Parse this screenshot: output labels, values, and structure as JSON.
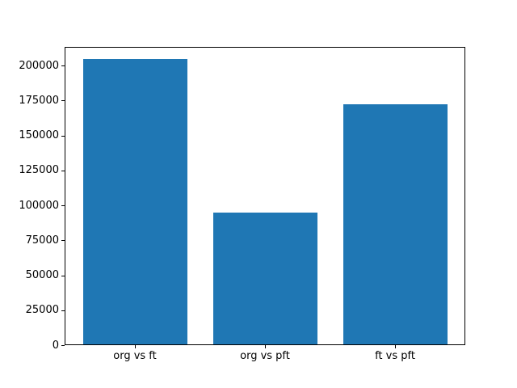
{
  "figure": {
    "background": "#ffffff",
    "axis_color": "#000000",
    "text_color": "#000000"
  },
  "chart_data": {
    "type": "bar",
    "title": "",
    "xlabel": "",
    "ylabel": "",
    "categories": [
      "org vs ft",
      "org vs pft",
      "ft vs pft"
    ],
    "values": [
      204600,
      94800,
      172300
    ],
    "bar_color": "#1f77b4",
    "x_positions": [
      0,
      1,
      2
    ],
    "bar_width": 0.8,
    "xlim": [
      -0.54,
      2.54
    ],
    "ylim": [
      0,
      213300
    ],
    "yticks": [
      0,
      25000,
      50000,
      75000,
      100000,
      125000,
      150000,
      175000,
      200000
    ],
    "ytick_labels": [
      "0",
      "25000",
      "50000",
      "75000",
      "100000",
      "125000",
      "150000",
      "175000",
      "200000"
    ],
    "grid": false,
    "legend_position": "none"
  }
}
